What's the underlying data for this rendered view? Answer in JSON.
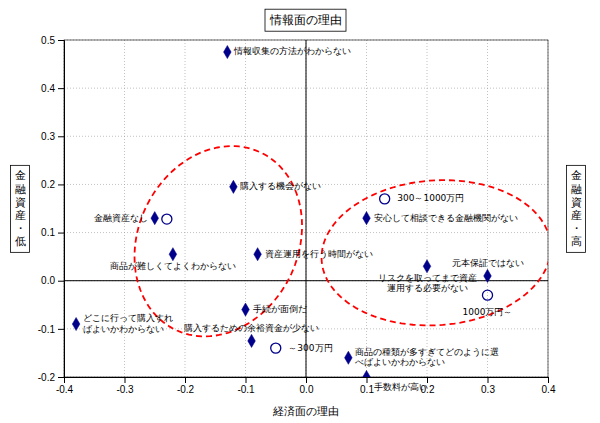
{
  "chart_data": {
    "type": "scatter",
    "title": "情報面の理由",
    "xlabel": "経済面の理由",
    "ylabel": "金\n融\n資\n産\n・\n低",
    "y2label": "金\n融\n資\n産\n・\n高",
    "xlim": [
      -0.4,
      0.4
    ],
    "ylim": [
      -0.2,
      0.5
    ],
    "xticks": [
      -0.4,
      -0.3,
      -0.2,
      -0.1,
      {
        "value": 0.0,
        "label": "0.0"
      },
      0.1,
      0.2,
      0.3,
      0.4
    ],
    "yticks": [
      -0.2,
      -0.1,
      {
        "value": 0.0,
        "label": "0.0"
      },
      0.1,
      0.2,
      0.3,
      0.4,
      0.5
    ],
    "grid": true,
    "series": [
      {
        "marker": "diamond",
        "color": "#00008B",
        "x": [
          -0.13,
          -0.12,
          -0.25,
          -0.22,
          -0.08,
          -0.38,
          -0.1,
          -0.09,
          0.1,
          0.2,
          0.3,
          0.07,
          0.1
        ],
        "values": [
          0.475,
          0.195,
          0.13,
          0.055,
          0.055,
          -0.09,
          -0.06,
          -0.125,
          0.13,
          0.03,
          0.01,
          -0.16,
          -0.2
        ],
        "labels": [
          "情報収集の方法がわからない",
          "購入する機会がない",
          "金融資産なし",
          "商品が難しくてよくわからない",
          "資産運用を行う時間がない",
          "どこに行って購入すれ\nばよいかわからない",
          "手続が面倒だ",
          "購入するための余裕資金が少ない",
          "安心して相談できる金融機関がない",
          "リスクを取ってまで資産\n運用する必要がない",
          "元本保証ではない",
          "商品の種類が多すぎてどのように選\nべばよいかわからない",
          "手数料が高い"
        ]
      },
      {
        "marker": "open_circle",
        "color": "#00008B",
        "x": [
          -0.23,
          -0.05,
          0.13,
          0.3
        ],
        "values": [
          0.128,
          -0.14,
          0.17,
          -0.03
        ],
        "labels": [
          null,
          "～300万円",
          "300～1000万円",
          "1000万円～"
        ]
      }
    ],
    "ellipses": [
      {
        "cx": -0.145,
        "cy": 0.082,
        "width": 0.27,
        "height": 0.4,
        "angle": -12,
        "color": "red",
        "line_style": "dashed"
      },
      {
        "cx": 0.215,
        "cy": 0.058,
        "width": 0.38,
        "height": 0.3,
        "angle": 8,
        "color": "red",
        "line_style": "dashed"
      }
    ]
  }
}
